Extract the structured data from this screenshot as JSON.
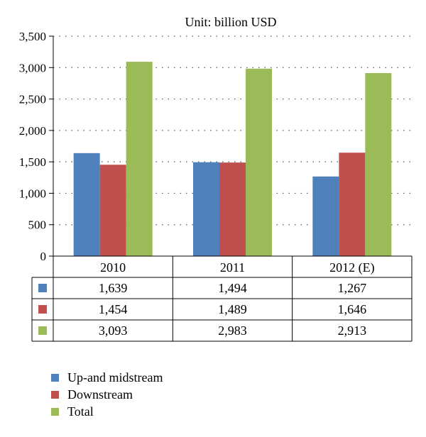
{
  "chart_data": {
    "type": "bar",
    "title": "Unit: billion USD",
    "categories": [
      "2010",
      "2011",
      "2012 (E)"
    ],
    "series": [
      {
        "name": "Up-and midstream",
        "color": "#4F81BD",
        "values": [
          1639,
          1494,
          1267
        ],
        "labels": [
          "1,639",
          "1,494",
          "1,267"
        ]
      },
      {
        "name": "Downstream",
        "color": "#C0504D",
        "values": [
          1454,
          1489,
          1646
        ],
        "labels": [
          "1,454",
          "1,489",
          "1,646"
        ]
      },
      {
        "name": "Total",
        "color": "#9BBB59",
        "values": [
          3093,
          2983,
          2913
        ],
        "labels": [
          "3,093",
          "2,983",
          "2,913"
        ]
      }
    ],
    "ylim": [
      0,
      3500
    ],
    "yticks": [
      "0",
      "500",
      "1,000",
      "1,500",
      "2,000",
      "2,500",
      "3,000",
      "3,500"
    ],
    "grid": true,
    "data_table": true,
    "legend": "bottom-left"
  }
}
